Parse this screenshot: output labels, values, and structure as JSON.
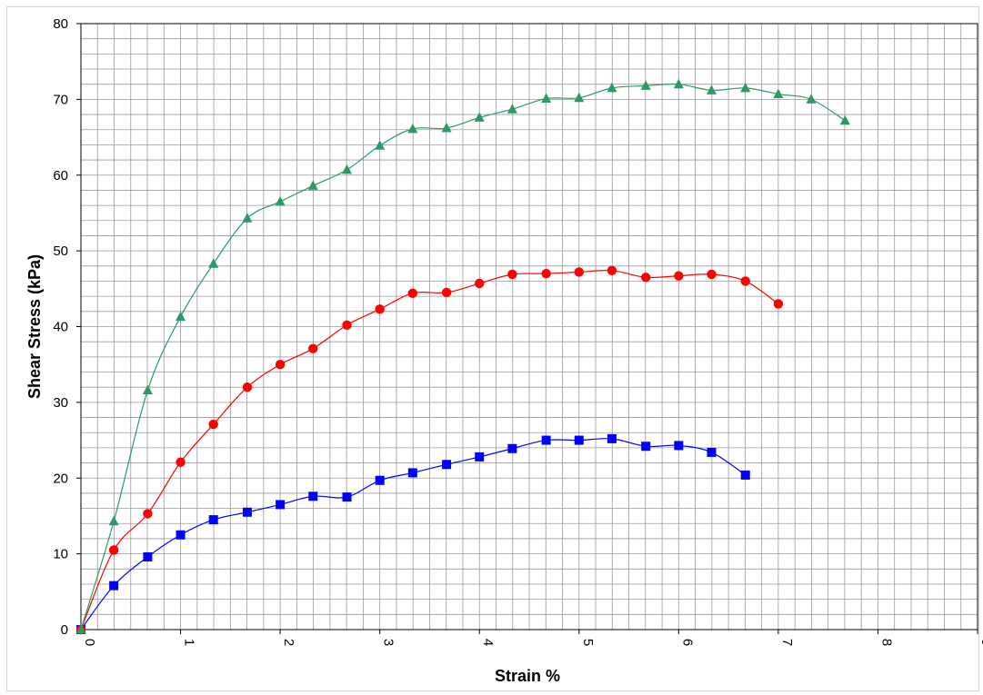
{
  "chart_data": {
    "type": "line",
    "xlabel": "Strain %",
    "ylabel": "Shear Stress (kPa)",
    "xlim": [
      0,
      9
    ],
    "ylim": [
      0,
      80
    ],
    "x_major_step": 1,
    "y_major_step": 10,
    "x_minor_per_major": 6,
    "y_minor_per_major": 5,
    "grid": true,
    "legend": "none",
    "series": [
      {
        "color": "#0000ff",
        "marker": "square",
        "x": [
          0,
          0.33,
          0.67,
          1.0,
          1.33,
          1.67,
          2.0,
          2.33,
          2.67,
          3.0,
          3.33,
          3.67,
          4.0,
          4.33,
          4.67,
          5.0,
          5.33,
          5.67,
          6.0,
          6.33,
          6.67
        ],
        "y": [
          0,
          5.8,
          9.6,
          12.5,
          14.5,
          15.5,
          16.5,
          17.6,
          17.5,
          19.7,
          20.7,
          21.8,
          22.8,
          23.9,
          25.0,
          25.0,
          25.2,
          24.2,
          24.3,
          23.4,
          20.4
        ]
      },
      {
        "color": "#ff0000",
        "marker": "circle",
        "x": [
          0,
          0.33,
          0.67,
          1.0,
          1.33,
          1.67,
          2.0,
          2.33,
          2.67,
          3.0,
          3.33,
          3.67,
          4.0,
          4.33,
          4.67,
          5.0,
          5.33,
          5.67,
          6.0,
          6.33,
          6.67,
          7.0
        ],
        "y": [
          0,
          10.5,
          15.3,
          22.1,
          27.1,
          32.0,
          35.0,
          37.1,
          40.2,
          42.3,
          44.4,
          44.5,
          45.7,
          46.9,
          47.0,
          47.2,
          47.4,
          46.5,
          46.7,
          46.9,
          46.0,
          43.0
        ]
      },
      {
        "color": "#2e9966",
        "marker": "triangle",
        "x": [
          0,
          0.33,
          0.67,
          1.0,
          1.33,
          1.67,
          2.0,
          2.33,
          2.67,
          3.0,
          3.33,
          3.67,
          4.0,
          4.33,
          4.67,
          5.0,
          5.33,
          5.67,
          6.0,
          6.33,
          6.67,
          7.0,
          7.33,
          7.67
        ],
        "y": [
          0,
          14.3,
          31.6,
          41.3,
          48.3,
          54.3,
          56.5,
          58.6,
          60.7,
          63.9,
          66.1,
          66.2,
          67.6,
          68.7,
          70.1,
          70.2,
          71.5,
          71.8,
          72.0,
          71.2,
          71.5,
          70.7,
          70.0,
          67.2
        ]
      }
    ]
  }
}
